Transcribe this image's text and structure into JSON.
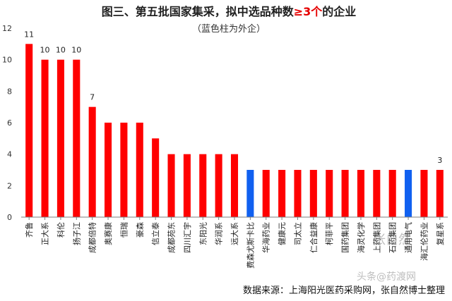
{
  "chart_data": {
    "type": "bar",
    "title": "图三、第五批国家集采，拟中选品种数",
    "title_highlight": "≥3个",
    "title_suffix": "的企业",
    "subtitle": "（蓝色柱为外企）",
    "xlabel": "",
    "ylabel": "",
    "ylim": [
      0,
      12
    ],
    "yticks": [
      0,
      2,
      4,
      6,
      8,
      10,
      12
    ],
    "grid": false,
    "legend": "none",
    "categories": [
      "齐鲁",
      "正大系",
      "科伦",
      "扬子江",
      "成都倍特",
      "奥赛康",
      "恒瑞",
      "豪森",
      "信立泰",
      "成都苑东",
      "四川汇宇",
      "东阳光",
      "华润系",
      "远大系",
      "费森尤斯卡比",
      "华海药业",
      "健康元",
      "司太立",
      "仁合益康",
      "柯菲平",
      "国药集团",
      "海灵化学",
      "上药集团",
      "石药集团",
      "通用电气",
      "海汇伦药业",
      "复星系"
    ],
    "values": [
      11,
      10,
      10,
      10,
      7,
      6,
      6,
      6,
      5,
      4,
      4,
      4,
      4,
      4,
      3,
      3,
      3,
      3,
      3,
      3,
      3,
      3,
      3,
      3,
      3,
      3,
      3
    ],
    "foreign": [
      false,
      false,
      false,
      false,
      false,
      false,
      false,
      false,
      false,
      false,
      false,
      false,
      false,
      false,
      true,
      false,
      false,
      false,
      false,
      false,
      false,
      false,
      false,
      false,
      true,
      false,
      false
    ],
    "data_labels": {
      "0": "11",
      "1": "10",
      "2": "10",
      "3": "10",
      "4": "7",
      "26": "3"
    },
    "colors": {
      "domestic": "#ff0000",
      "foreign": "#1060f0"
    }
  },
  "source_text": "数据来源：上海阳光医药采购网，张自然博士整理",
  "watermarks": [
    "张自然",
    "头条@药渡网"
  ]
}
